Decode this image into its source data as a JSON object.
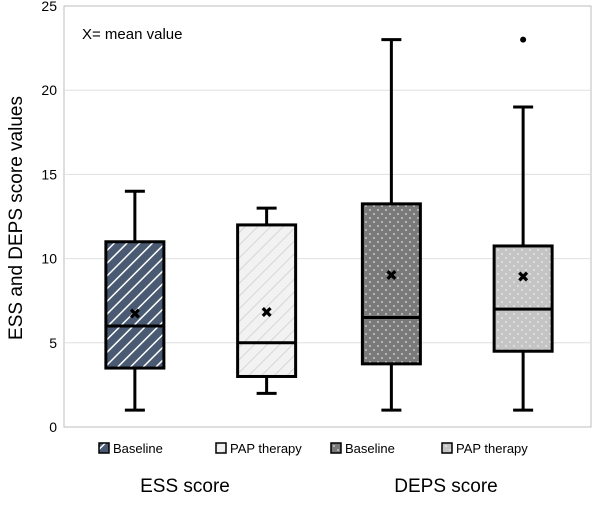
{
  "chart_data": {
    "type": "box",
    "annotation": "X= mean value",
    "ylabel": "ESS and DEPS score values",
    "ylim": [
      0,
      25
    ],
    "yticks": [
      0,
      5,
      10,
      15,
      20,
      25
    ],
    "grid": true,
    "groups": [
      {
        "label": "ESS score"
      },
      {
        "label": "DEPS score"
      }
    ],
    "boxes": [
      {
        "legend": "Baseline",
        "group": "ESS score",
        "pattern": "diagonal-dark",
        "whisker_low": 1,
        "q1": 3.5,
        "median": 6,
        "q3": 11,
        "whisker_high": 14,
        "mean": 6.7,
        "outliers": []
      },
      {
        "legend": "PAP therapy",
        "group": "ESS score",
        "pattern": "diagonal-light",
        "whisker_low": 2,
        "q1": 3,
        "median": 5,
        "q3": 12,
        "whisker_high": 13,
        "mean": 6.8,
        "outliers": []
      },
      {
        "legend": "Baseline",
        "group": "DEPS score",
        "pattern": "dots-dark",
        "whisker_low": 1,
        "q1": 3.75,
        "median": 6.5,
        "q3": 13.25,
        "whisker_high": 23,
        "mean": 9.0,
        "outliers": []
      },
      {
        "legend": "PAP therapy",
        "group": "DEPS score",
        "pattern": "dots-light",
        "whisker_low": 1,
        "q1": 4.5,
        "median": 7,
        "q3": 10.75,
        "whisker_high": 19,
        "mean": 8.9,
        "outliers": [
          23
        ]
      }
    ],
    "colors": {
      "dark_fill": "#4a5a72",
      "light_fill": "#f2f2f2",
      "dots_dark_fill": "#7a7a7a",
      "dots_light_fill": "#c4c4c4",
      "grid": "#e0e0e0",
      "stroke": "#000000"
    }
  }
}
